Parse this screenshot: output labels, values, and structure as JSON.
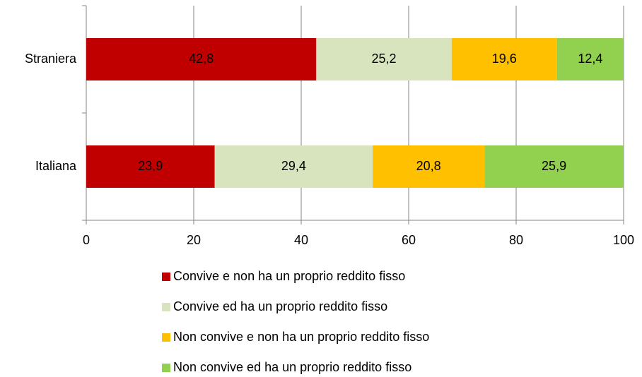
{
  "chart_data": {
    "type": "stacked-bar-horizontal",
    "categories": [
      "Straniera",
      "Italiana"
    ],
    "series": [
      {
        "name": "Convive e non ha un proprio reddito fisso",
        "color": "#c00000",
        "values": [
          42.8,
          23.9
        ],
        "value_labels": [
          "42,8",
          "23,9"
        ]
      },
      {
        "name": "Convive ed ha un proprio reddito fisso",
        "color": "#d7e4bd",
        "values": [
          25.2,
          29.4
        ],
        "value_labels": [
          "25,2",
          "29,4"
        ]
      },
      {
        "name": "Non convive e non ha un proprio reddito fisso",
        "color": "#ffc000",
        "values": [
          19.6,
          20.8
        ],
        "value_labels": [
          "19,6",
          "20,8"
        ]
      },
      {
        "name": "Non convive ed ha un proprio reddito fisso",
        "color": "#92d050",
        "values": [
          12.4,
          25.9
        ],
        "value_labels": [
          "12,4",
          "25,9"
        ]
      }
    ],
    "xlim": [
      0,
      100
    ],
    "xticks": [
      0,
      20,
      40,
      60,
      80,
      100
    ],
    "grid": true,
    "legend": "bottom"
  }
}
